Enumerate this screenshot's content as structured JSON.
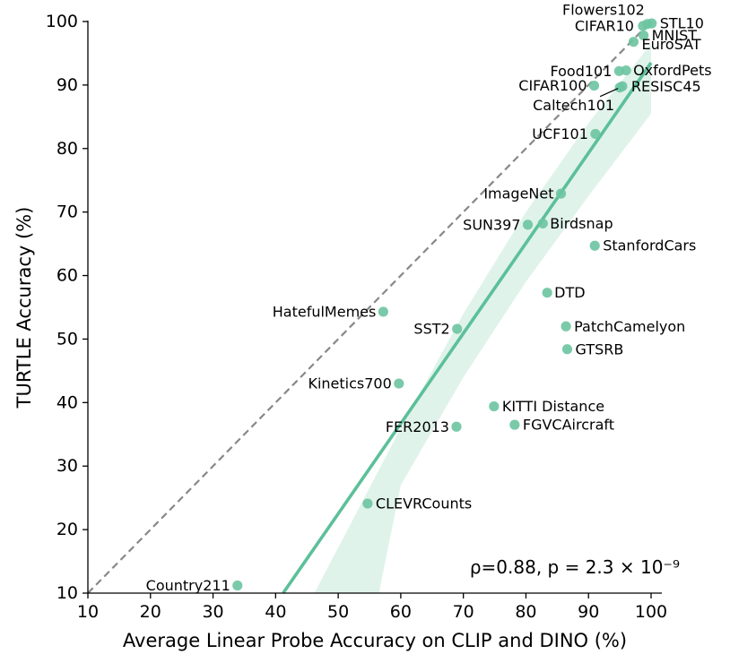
{
  "chart_data": {
    "type": "scatter",
    "xlabel": "Average Linear Probe Accuracy on CLIP and DINO (%)",
    "ylabel": "TURTLE Accuracy (%)",
    "xlim": [
      10,
      100
    ],
    "ylim": [
      10,
      100
    ],
    "xticks": [
      10,
      20,
      30,
      40,
      50,
      60,
      70,
      80,
      90,
      100
    ],
    "yticks": [
      10,
      20,
      30,
      40,
      50,
      60,
      70,
      80,
      90,
      100
    ],
    "annotation": "ρ=0.88, p = 2.3 × 10⁻⁹",
    "colors": {
      "points": "#6cc4a1",
      "fit": "#5cc09a",
      "band": "#dff3ea",
      "diagonal": "#888888"
    },
    "identity_line": {
      "from": [
        10,
        10
      ],
      "to": [
        100,
        100
      ]
    },
    "fit_line": {
      "from": [
        41.2,
        10
      ],
      "to": [
        100,
        93.5
      ]
    },
    "confidence_band": {
      "upper": [
        [
          46.2,
          10
        ],
        [
          60,
          36
        ],
        [
          70,
          54
        ],
        [
          80,
          70
        ],
        [
          90,
          84
        ],
        [
          100,
          96.5
        ]
      ],
      "lower": [
        [
          100,
          85.5
        ],
        [
          90,
          72.5
        ],
        [
          80,
          59
        ],
        [
          70,
          44
        ],
        [
          60,
          27
        ],
        [
          56.5,
          10
        ]
      ]
    },
    "points": [
      {
        "name": "Flowers102",
        "x": 99.4,
        "y": 99.6
      },
      {
        "name": "STL10",
        "x": 100.1,
        "y": 99.7
      },
      {
        "name": "CIFAR10",
        "x": 98.7,
        "y": 99.3
      },
      {
        "name": "MNIST",
        "x": 98.8,
        "y": 97.8
      },
      {
        "name": "EuroSAT",
        "x": 97.2,
        "y": 96.8
      },
      {
        "name": "Food101",
        "x": 94.9,
        "y": 92.2
      },
      {
        "name": "OxfordPets",
        "x": 96.0,
        "y": 92.3
      },
      {
        "name": "CIFAR100",
        "x": 90.9,
        "y": 89.9
      },
      {
        "name": "RESISC45",
        "x": 95.4,
        "y": 89.8
      },
      {
        "name": "Caltech101",
        "x": 95.0,
        "y": 89.6
      },
      {
        "name": "UCF101",
        "x": 91.1,
        "y": 82.3
      },
      {
        "name": "ImageNet",
        "x": 85.6,
        "y": 72.9
      },
      {
        "name": "Birdsnap",
        "x": 82.7,
        "y": 68.2
      },
      {
        "name": "SUN397",
        "x": 80.3,
        "y": 68.0
      },
      {
        "name": "StanfordCars",
        "x": 91.0,
        "y": 64.7
      },
      {
        "name": "DTD",
        "x": 83.4,
        "y": 57.3
      },
      {
        "name": "HatefulMemes",
        "x": 57.2,
        "y": 54.3
      },
      {
        "name": "SST2",
        "x": 69.0,
        "y": 51.6
      },
      {
        "name": "PatchCamelyon",
        "x": 86.4,
        "y": 52.0
      },
      {
        "name": "GTSRB",
        "x": 86.6,
        "y": 48.4
      },
      {
        "name": "Kinetics700",
        "x": 59.7,
        "y": 43.0
      },
      {
        "name": "KITTI Distance",
        "x": 74.9,
        "y": 39.4
      },
      {
        "name": "FER2013",
        "x": 68.9,
        "y": 36.2
      },
      {
        "name": "FGVCAircraft",
        "x": 78.2,
        "y": 36.5
      },
      {
        "name": "CLEVRCounts",
        "x": 54.7,
        "y": 24.1
      },
      {
        "name": "Country211",
        "x": 33.9,
        "y": 11.2
      }
    ]
  }
}
